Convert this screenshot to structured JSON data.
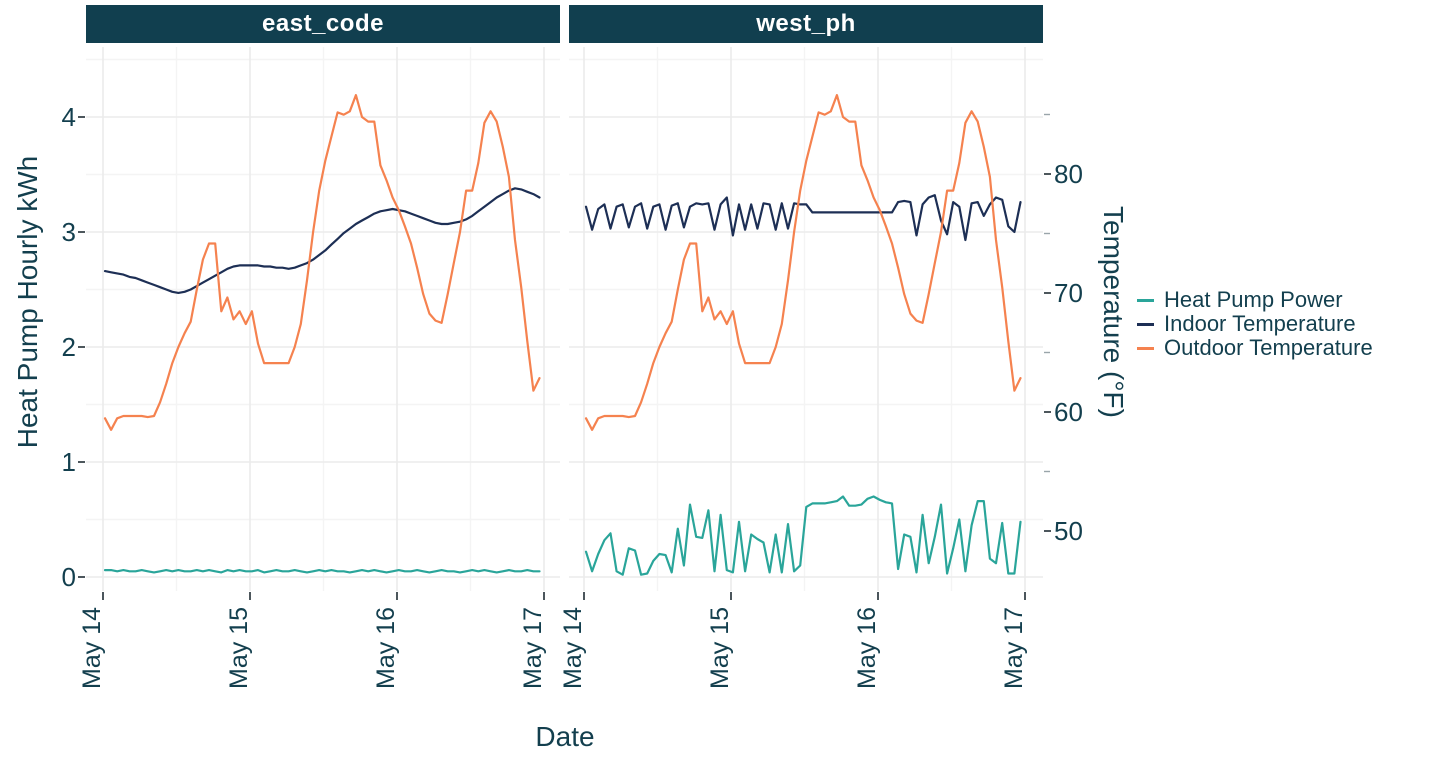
{
  "figure": {
    "x_axis_title": "Date",
    "y_left_title": "Heat Pump Hourly kWh",
    "y_right_title": "Temperature (°F)"
  },
  "legend": {
    "items": [
      {
        "label": "Heat Pump Power",
        "color": "#2aa59a"
      },
      {
        "label": "Indoor Temperature",
        "color": "#1d2f55"
      },
      {
        "label": "Outdoor Temperature",
        "color": "#f5824f"
      }
    ]
  },
  "chart_data": {
    "type": "line",
    "title": "",
    "xlabel": "Date",
    "x_unit": "hourly observations from May 14 00:00 to May 16 23:00",
    "x_ticks": [
      "May 14",
      "May 15",
      "May 16",
      "May 17"
    ],
    "y_left": {
      "label": "Heat Pump Hourly kWh",
      "ticks_display": [
        "4",
        "3",
        "2",
        "1",
        "0"
      ],
      "tick_values": [
        4,
        3,
        2,
        1,
        0
      ],
      "range": [
        0,
        4.6
      ]
    },
    "y_right": {
      "label": "Temperature (°F)",
      "ticks_display": [
        "80",
        "70",
        "60",
        "50"
      ],
      "tick_values": [
        80,
        70,
        60,
        50
      ],
      "minor_tick_values": [
        85,
        75,
        65,
        55
      ],
      "range": [
        46,
        90
      ]
    },
    "grid": "major and minor, light gray",
    "legend_position": "right",
    "note": "Series values are plotted in left-axis kWh units; temperatures map to the right axis (approx °F = 46 + 9.7 * kWh).",
    "facets": [
      {
        "name": "east_code",
        "series": [
          {
            "name": "Heat Pump Power",
            "color": "#2aa59a",
            "values": [
              0.06,
              0.06,
              0.05,
              0.06,
              0.05,
              0.05,
              0.06,
              0.05,
              0.04,
              0.05,
              0.06,
              0.05,
              0.06,
              0.05,
              0.05,
              0.06,
              0.05,
              0.06,
              0.05,
              0.04,
              0.06,
              0.05,
              0.06,
              0.05,
              0.05,
              0.06,
              0.04,
              0.05,
              0.06,
              0.05,
              0.05,
              0.06,
              0.05,
              0.04,
              0.05,
              0.06,
              0.05,
              0.06,
              0.05,
              0.05,
              0.04,
              0.05,
              0.06,
              0.05,
              0.06,
              0.05,
              0.04,
              0.05,
              0.06,
              0.05,
              0.05,
              0.06,
              0.05,
              0.04,
              0.05,
              0.06,
              0.05,
              0.05,
              0.04,
              0.05,
              0.06,
              0.05,
              0.06,
              0.05,
              0.04,
              0.05,
              0.06,
              0.05,
              0.05,
              0.06,
              0.05,
              0.05
            ]
          },
          {
            "name": "Indoor Temperature",
            "color": "#1d2f55",
            "values": [
              2.66,
              2.65,
              2.64,
              2.63,
              2.61,
              2.6,
              2.58,
              2.56,
              2.54,
              2.52,
              2.5,
              2.48,
              2.47,
              2.48,
              2.5,
              2.53,
              2.56,
              2.59,
              2.62,
              2.65,
              2.68,
              2.7,
              2.71,
              2.71,
              2.71,
              2.71,
              2.7,
              2.7,
              2.69,
              2.69,
              2.68,
              2.69,
              2.71,
              2.73,
              2.76,
              2.8,
              2.84,
              2.89,
              2.94,
              2.99,
              3.03,
              3.07,
              3.1,
              3.13,
              3.16,
              3.18,
              3.19,
              3.2,
              3.19,
              3.18,
              3.16,
              3.14,
              3.12,
              3.1,
              3.08,
              3.07,
              3.07,
              3.08,
              3.09,
              3.11,
              3.14,
              3.18,
              3.22,
              3.26,
              3.3,
              3.33,
              3.36,
              3.38,
              3.37,
              3.35,
              3.33,
              3.3
            ]
          },
          {
            "name": "Outdoor Temperature",
            "color": "#f5824f",
            "values": [
              1.38,
              1.28,
              1.38,
              1.4,
              1.4,
              1.4,
              1.4,
              1.39,
              1.4,
              1.52,
              1.68,
              1.86,
              2.0,
              2.12,
              2.22,
              2.5,
              2.76,
              2.9,
              2.9,
              2.31,
              2.43,
              2.24,
              2.31,
              2.2,
              2.31,
              2.03,
              1.86,
              1.86,
              1.86,
              1.86,
              1.86,
              2.0,
              2.2,
              2.58,
              3.0,
              3.36,
              3.62,
              3.83,
              4.04,
              4.02,
              4.05,
              4.19,
              4.0,
              3.96,
              3.96,
              3.58,
              3.45,
              3.3,
              3.19,
              3.05,
              2.9,
              2.69,
              2.46,
              2.29,
              2.23,
              2.21,
              2.46,
              2.73,
              3.0,
              3.36,
              3.36,
              3.6,
              3.95,
              4.05,
              3.96,
              3.74,
              3.48,
              2.93,
              2.52,
              2.05,
              1.62,
              1.73
            ]
          }
        ]
      },
      {
        "name": "west_ph",
        "series": [
          {
            "name": "Heat Pump Power",
            "color": "#2aa59a",
            "values": [
              0.22,
              0.05,
              0.2,
              0.32,
              0.38,
              0.05,
              0.02,
              0.25,
              0.23,
              0.02,
              0.03,
              0.14,
              0.2,
              0.19,
              0.04,
              0.42,
              0.1,
              0.63,
              0.35,
              0.34,
              0.58,
              0.05,
              0.54,
              0.06,
              0.04,
              0.48,
              0.05,
              0.37,
              0.33,
              0.3,
              0.04,
              0.37,
              0.04,
              0.46,
              0.05,
              0.1,
              0.61,
              0.64,
              0.64,
              0.64,
              0.65,
              0.66,
              0.7,
              0.62,
              0.62,
              0.63,
              0.68,
              0.7,
              0.67,
              0.65,
              0.64,
              0.07,
              0.37,
              0.35,
              0.04,
              0.54,
              0.12,
              0.35,
              0.63,
              0.03,
              0.25,
              0.5,
              0.05,
              0.45,
              0.66,
              0.66,
              0.16,
              0.12,
              0.47,
              0.03,
              0.03,
              0.48
            ]
          },
          {
            "name": "Indoor Temperature",
            "color": "#1d2f55",
            "values": [
              3.22,
              3.02,
              3.2,
              3.24,
              3.03,
              3.22,
              3.24,
              3.04,
              3.22,
              3.25,
              3.03,
              3.22,
              3.24,
              3.02,
              3.23,
              3.25,
              3.04,
              3.22,
              3.25,
              3.24,
              3.25,
              3.02,
              3.24,
              3.3,
              2.97,
              3.24,
              3.02,
              3.24,
              3.03,
              3.25,
              3.24,
              3.02,
              3.25,
              3.03,
              3.25,
              3.24,
              3.24,
              3.17,
              3.17,
              3.17,
              3.17,
              3.17,
              3.17,
              3.17,
              3.17,
              3.17,
              3.17,
              3.17,
              3.17,
              3.17,
              3.17,
              3.26,
              3.27,
              3.26,
              2.97,
              3.24,
              3.3,
              3.32,
              3.1,
              2.98,
              3.26,
              3.22,
              2.93,
              3.25,
              3.26,
              3.14,
              3.24,
              3.3,
              3.28,
              3.05,
              3.0,
              3.26
            ]
          },
          {
            "name": "Outdoor Temperature",
            "color": "#f5824f",
            "values": [
              1.38,
              1.28,
              1.38,
              1.4,
              1.4,
              1.4,
              1.4,
              1.39,
              1.4,
              1.52,
              1.68,
              1.86,
              2.0,
              2.12,
              2.22,
              2.5,
              2.76,
              2.9,
              2.9,
              2.31,
              2.43,
              2.24,
              2.31,
              2.2,
              2.31,
              2.03,
              1.86,
              1.86,
              1.86,
              1.86,
              1.86,
              2.0,
              2.2,
              2.58,
              3.0,
              3.36,
              3.62,
              3.83,
              4.04,
              4.02,
              4.05,
              4.19,
              4.0,
              3.96,
              3.96,
              3.58,
              3.45,
              3.3,
              3.19,
              3.05,
              2.9,
              2.69,
              2.46,
              2.29,
              2.23,
              2.21,
              2.46,
              2.73,
              3.0,
              3.36,
              3.36,
              3.6,
              3.95,
              4.05,
              3.96,
              3.74,
              3.48,
              2.93,
              2.52,
              2.05,
              1.62,
              1.73
            ]
          }
        ]
      }
    ]
  }
}
